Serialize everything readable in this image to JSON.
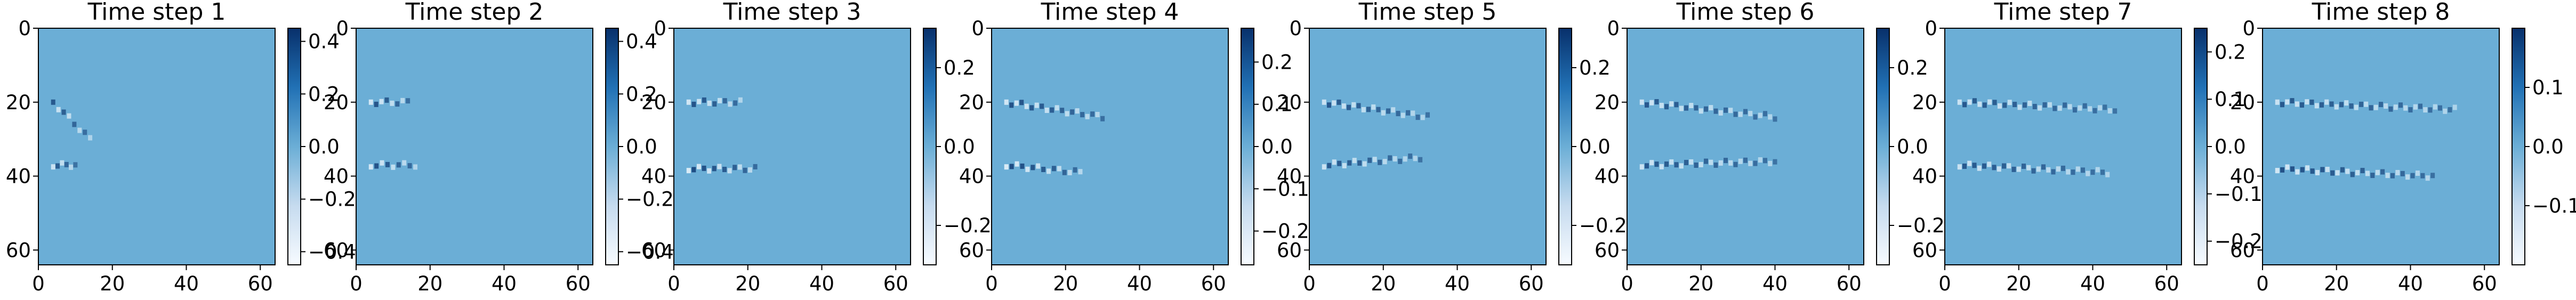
{
  "chart_data": {
    "type": "heatmap",
    "colormap": "Blues",
    "grid": false,
    "image_extent": {
      "x": [
        0,
        64
      ],
      "y": [
        64,
        0
      ]
    },
    "panels": [
      {
        "title": "Time step 1",
        "xticks": [
          "0",
          "20",
          "40",
          "60"
        ],
        "yticks": [
          "0",
          "20",
          "40",
          "60"
        ],
        "colorbar": {
          "range": [
            -0.45,
            0.45
          ],
          "ticks": [
            {
              "v": 0.4,
              "label": "0.4"
            },
            {
              "v": 0.2,
              "label": "0.2"
            },
            {
              "v": 0.0,
              "label": "0.0"
            },
            {
              "v": -0.2,
              "label": "−0.2"
            },
            {
              "v": -0.4,
              "label": "−0.4"
            }
          ]
        },
        "features": [
          {
            "x": 4,
            "y": 20,
            "x2": 14,
            "y2": 30,
            "amp": 0.6
          },
          {
            "x": 4,
            "y": 37,
            "x2": 10,
            "y2": 37,
            "amp": -0.6
          }
        ]
      },
      {
        "title": "Time step 2",
        "xticks": [
          "0",
          "20",
          "40",
          "60"
        ],
        "yticks": [
          "0",
          "20",
          "40",
          "60"
        ],
        "colorbar": {
          "range": [
            -0.45,
            0.45
          ],
          "ticks": [
            {
              "v": 0.4,
              "label": "0.4"
            },
            {
              "v": 0.2,
              "label": "0.2"
            },
            {
              "v": 0.0,
              "label": "0.0"
            },
            {
              "v": -0.2,
              "label": "−0.2"
            },
            {
              "v": -0.4,
              "label": "−0.4"
            }
          ]
        },
        "features": [
          {
            "x": 4,
            "y": 20,
            "x2": 14,
            "y2": 20,
            "amp": -0.7
          },
          {
            "x": 4,
            "y": 37,
            "x2": 16,
            "y2": 37,
            "amp": -0.7
          }
        ]
      },
      {
        "title": "Time step 3",
        "xticks": [
          "0",
          "20",
          "40",
          "60"
        ],
        "yticks": [
          "0",
          "20",
          "40",
          "60"
        ],
        "colorbar": {
          "range": [
            -0.3,
            0.3
          ],
          "ticks": [
            {
              "v": 0.2,
              "label": "0.2"
            },
            {
              "v": 0.0,
              "label": "0.0"
            },
            {
              "v": -0.2,
              "label": "−0.2"
            }
          ]
        },
        "features": [
          {
            "x": 4,
            "y": 20,
            "x2": 18,
            "y2": 20,
            "amp": -0.7
          },
          {
            "x": 4,
            "y": 38,
            "x2": 22,
            "y2": 38,
            "amp": -0.8
          }
        ]
      },
      {
        "title": "Time step 4",
        "xticks": [
          "0",
          "20",
          "40",
          "60"
        ],
        "yticks": [
          "0",
          "20",
          "40",
          "60"
        ],
        "colorbar": {
          "range": [
            -0.28,
            0.28
          ],
          "ticks": [
            {
              "v": 0.2,
              "label": "0.2"
            },
            {
              "v": 0.1,
              "label": "0.1"
            },
            {
              "v": 0.0,
              "label": "0.0"
            },
            {
              "v": -0.1,
              "label": "−0.1"
            },
            {
              "v": -0.2,
              "label": "−0.2"
            }
          ]
        },
        "features": [
          {
            "x": 4,
            "y": 20,
            "x2": 30,
            "y2": 24,
            "amp": -0.7
          },
          {
            "x": 4,
            "y": 37,
            "x2": 24,
            "y2": 39,
            "amp": -0.8
          }
        ]
      },
      {
        "title": "Time step 5",
        "xticks": [
          "0",
          "20",
          "40",
          "60"
        ],
        "yticks": [
          "0",
          "20",
          "40",
          "60"
        ],
        "colorbar": {
          "range": [
            -0.3,
            0.3
          ],
          "ticks": [
            {
              "v": 0.2,
              "label": "0.2"
            },
            {
              "v": 0.0,
              "label": "0.0"
            },
            {
              "v": -0.2,
              "label": "−0.2"
            }
          ]
        },
        "features": [
          {
            "x": 4,
            "y": 20,
            "x2": 32,
            "y2": 24,
            "amp": -0.6
          },
          {
            "x": 4,
            "y": 37,
            "x2": 30,
            "y2": 35,
            "amp": -0.6
          }
        ]
      },
      {
        "title": "Time step 6",
        "xticks": [
          "0",
          "20",
          "40",
          "60"
        ],
        "yticks": [
          "0",
          "20",
          "40",
          "60"
        ],
        "colorbar": {
          "range": [
            -0.3,
            0.3
          ],
          "ticks": [
            {
              "v": 0.2,
              "label": "0.2"
            },
            {
              "v": 0.0,
              "label": "0.0"
            },
            {
              "v": -0.2,
              "label": "−0.2"
            }
          ]
        },
        "features": [
          {
            "x": 4,
            "y": 20,
            "x2": 40,
            "y2": 24,
            "amp": -0.6
          },
          {
            "x": 4,
            "y": 37,
            "x2": 40,
            "y2": 36,
            "amp": -0.6
          }
        ]
      },
      {
        "title": "Time step 7",
        "xticks": [
          "0",
          "20",
          "40",
          "60"
        ],
        "yticks": [
          "0",
          "20",
          "40",
          "60"
        ],
        "colorbar": {
          "range": [
            -0.25,
            0.25
          ],
          "ticks": [
            {
              "v": 0.2,
              "label": "0.2"
            },
            {
              "v": 0.1,
              "label": "0.1"
            },
            {
              "v": 0.0,
              "label": "0.0"
            },
            {
              "v": -0.1,
              "label": "−0.1"
            },
            {
              "v": -0.2,
              "label": "−0.2"
            }
          ]
        },
        "features": [
          {
            "x": 4,
            "y": 20,
            "x2": 46,
            "y2": 22,
            "amp": -0.6
          },
          {
            "x": 4,
            "y": 37,
            "x2": 44,
            "y2": 39,
            "amp": -0.6
          }
        ]
      },
      {
        "title": "Time step 8",
        "xticks": [
          "0",
          "20",
          "40",
          "60"
        ],
        "yticks": [
          "0",
          "20",
          "40",
          "60"
        ],
        "colorbar": {
          "range": [
            -0.2,
            0.2
          ],
          "ticks": [
            {
              "v": 0.1,
              "label": "0.1"
            },
            {
              "v": 0.0,
              "label": "0.0"
            },
            {
              "v": -0.1,
              "label": "−0.1"
            }
          ]
        },
        "features": [
          {
            "x": 4,
            "y": 20,
            "x2": 52,
            "y2": 22,
            "amp": -0.6
          },
          {
            "x": 4,
            "y": 38,
            "x2": 46,
            "y2": 40,
            "amp": -0.7
          }
        ]
      }
    ]
  },
  "colors": {
    "background_field": "#6baed6",
    "cmap_low": "#f7fbff",
    "cmap_mid": "#6baed6",
    "cmap_high": "#08306b",
    "axis": "#000000"
  }
}
